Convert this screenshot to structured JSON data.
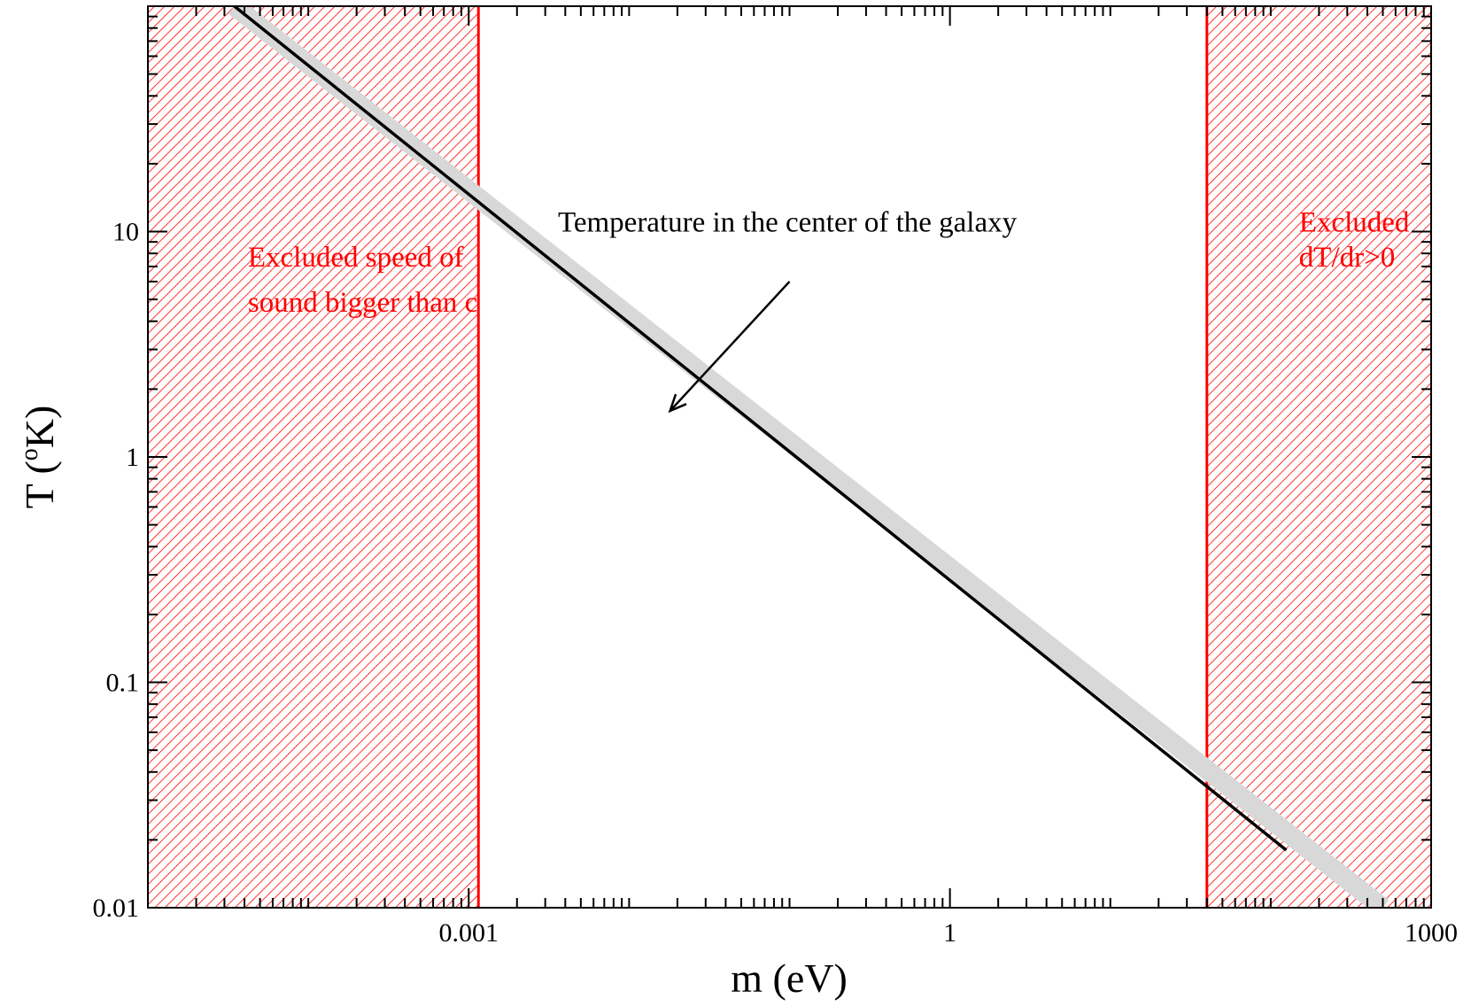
{
  "chart_data": {
    "type": "line",
    "title": "",
    "xlabel": "m (eV)",
    "ylabel": "T (",
    "ylabel_sup": "o",
    "ylabel_end": "K)",
    "x_scale": "log",
    "y_scale": "log",
    "xlim": [
      1e-05,
      1000
    ],
    "ylim": [
      0.01,
      100
    ],
    "grid": false,
    "x_ticks": [
      {
        "value": 0.001,
        "label": "0.001"
      },
      {
        "value": 1,
        "label": "1"
      },
      {
        "value": 1000,
        "label": "1000"
      }
    ],
    "y_ticks": [
      {
        "value": 0.01,
        "label": "0.01"
      },
      {
        "value": 0.1,
        "label": "0.1"
      },
      {
        "value": 1,
        "label": "1"
      },
      {
        "value": 10,
        "label": "10"
      }
    ],
    "series": [
      {
        "type": "line",
        "color": "#000000",
        "x": [
          3.46e-05,
          125
        ],
        "y": [
          100,
          0.018
        ]
      }
    ],
    "band": {
      "color": "#d8d8d8",
      "x": [
        3.46e-05,
        500
      ],
      "y": [
        100,
        0.01
      ]
    },
    "excluded_regions": [
      {
        "x_range": [
          1e-05,
          0.00115
        ],
        "color": "#ff0000",
        "lines": [
          "Excluded speed of",
          "sound bigger than c"
        ],
        "label_x": 4.2e-05,
        "label_y": [
          7.0,
          4.4
        ]
      },
      {
        "x_range": [
          40,
          1000
        ],
        "color": "#ff0000",
        "lines": [
          "Excluded",
          "dT/dr>0"
        ],
        "label_x": 150,
        "label_y": [
          10.0,
          7.0
        ]
      }
    ],
    "annotations": [
      {
        "text": "Temperature in the center of the galaxy",
        "text_x": 0.0036,
        "text_y": 10.0,
        "arrow_from": [
          0.1,
          6.0
        ],
        "arrow_to": [
          0.018,
          1.6
        ],
        "color": "#000000"
      }
    ]
  }
}
